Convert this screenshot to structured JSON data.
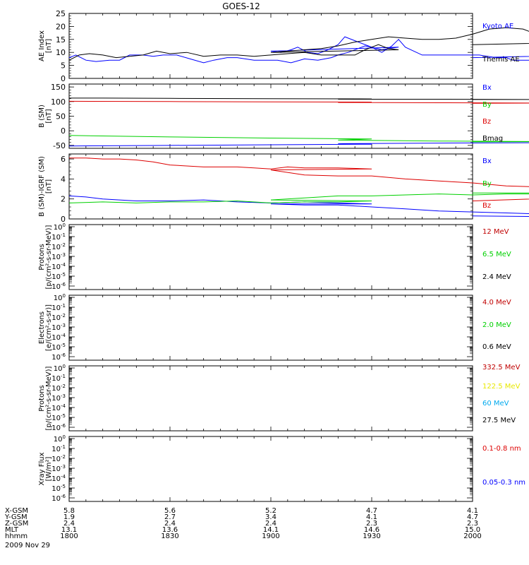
{
  "title": "GOES-12",
  "colors": {
    "black": "#000000",
    "blue": "#0000ff",
    "green": "#00d000",
    "red": "#dd0000",
    "darkred": "#c00000",
    "yellow": "#e8e800",
    "cyan": "#00aaee"
  },
  "chart_data": [
    {
      "type": "line",
      "id": "ae",
      "ylabel": [
        "AE Index",
        "[nT]"
      ],
      "ylim": [
        0,
        25
      ],
      "yticks": [
        "0",
        "5",
        "10",
        "15",
        "20",
        "25"
      ],
      "legend": [
        {
          "label": "Kyoto AE",
          "color": "#0000ff"
        },
        {
          "label": "Themis AE",
          "color": "#000000"
        }
      ],
      "series": [
        {
          "color": "#0000ff",
          "x": [
            1800,
            1802,
            1805,
            1808,
            1812,
            1815,
            1818,
            1822,
            1825,
            1828,
            1832,
            1836,
            1840,
            1843,
            1847,
            1850,
            1855,
            1858,
            1862,
            1866,
            1870,
            1874,
            1878,
            1880,
            1883,
            1886,
            1888,
            1890,
            1893,
            1895,
            1898,
            1900,
            1903,
            1906,
            1908,
            1911,
            1914,
            1917,
            1920,
            1922,
            1926,
            1930,
            1933,
            1936,
            1938,
            1940,
            1945,
            1950,
            1955,
            1958,
            1962,
            1967,
            1970,
            1972,
            1975,
            1978,
            1980,
            1985,
            1988,
            1992,
            1997,
            2000
          ],
          "y": [
            8,
            9,
            7,
            6.5,
            7,
            7,
            9,
            9,
            8.5,
            9,
            9,
            7.5,
            6,
            7,
            8,
            8,
            7,
            7,
            7,
            6,
            7.5,
            7,
            8,
            9,
            10,
            11.5,
            12.5,
            12,
            11,
            11.5,
            12,
            10.5,
            10,
            11,
            12,
            10,
            9.5,
            11,
            13,
            16,
            14,
            12,
            10,
            12.5,
            15,
            12,
            9,
            9,
            9,
            9,
            9,
            8,
            8,
            7,
            7,
            7,
            9,
            9,
            8.5,
            9,
            9,
            8
          ]
        },
        {
          "color": "#000000",
          "x": [
            1800,
            1803,
            1806,
            1810,
            1814,
            1818,
            1822,
            1826,
            1830,
            1835,
            1840,
            1845,
            1850,
            1855,
            1860,
            1865,
            1870,
            1875,
            1880,
            1885,
            1888,
            1892,
            1895,
            1898,
            1900,
            1905,
            1910,
            1915,
            1920,
            1925,
            1930,
            1935,
            1940,
            1945,
            1950,
            1955,
            1960,
            1965,
            1970,
            1975,
            1978,
            1982,
            1986,
            1990,
            1993,
            1996,
            2000
          ],
          "y": [
            7,
            9,
            9.5,
            9,
            8,
            8.5,
            9,
            10.5,
            9.5,
            10,
            8.5,
            9,
            9,
            8.5,
            9,
            9.5,
            10,
            9,
            9,
            9,
            11,
            13,
            11.5,
            11,
            10,
            10.5,
            11,
            11.5,
            12.5,
            14,
            15,
            16,
            15.5,
            15,
            15,
            15.5,
            17,
            19,
            19.5,
            19,
            17.5,
            16,
            16.5,
            17,
            16,
            14,
            13
          ]
        }
      ]
    },
    {
      "type": "line",
      "id": "bfield",
      "ylabel": [
        "B (SM)",
        "[nT]"
      ],
      "ylim": [
        -60,
        160
      ],
      "yticks": [
        "-50",
        "0",
        "50",
        "100",
        "150"
      ],
      "ytick_values": [
        -50,
        0,
        50,
        100,
        150
      ],
      "legend": [
        {
          "label": "Bx",
          "color": "#0000ff"
        },
        {
          "label": "By",
          "color": "#00d000"
        },
        {
          "label": "Bz",
          "color": "#dd0000"
        },
        {
          "label": "Bmag",
          "color": "#000000"
        }
      ],
      "series": [
        {
          "name": "Bx",
          "color": "#0000ff",
          "x": [
            1800,
            1830,
            1860,
            1890,
            1920,
            1950,
            1980,
            1995
          ],
          "y": [
            -52,
            -50,
            -48,
            -46,
            -44,
            -42,
            -41,
            -40
          ]
        },
        {
          "name": "By",
          "color": "#00d000",
          "x": [
            1800,
            1830,
            1860,
            1890,
            1920,
            1950,
            1980,
            2000
          ],
          "y": [
            -16,
            -21,
            -25,
            -28,
            -32,
            -35,
            -37,
            -38
          ]
        },
        {
          "name": "Bz",
          "color": "#dd0000",
          "x": [
            1800,
            1830,
            1860,
            1890,
            1920,
            1950,
            1980,
            2000
          ],
          "y": [
            101,
            100,
            99,
            98,
            97,
            96,
            95,
            94
          ]
        },
        {
          "name": "Bmag",
          "color": "#000000",
          "x": [
            1800,
            1810,
            1830,
            1860,
            1890,
            1920,
            1950,
            1980,
            2000
          ],
          "y": [
            112,
            112,
            111,
            110,
            109,
            108,
            108,
            107,
            107
          ]
        }
      ]
    },
    {
      "type": "line",
      "id": "bdiff",
      "ylabel": [
        "B (SM)-IGRF (SM)",
        "[nT]"
      ],
      "ylim": [
        0,
        6.5
      ],
      "yticks": [
        "0",
        "2",
        "4",
        "6"
      ],
      "ytick_values": [
        0,
        2,
        4,
        6
      ],
      "legend": [
        {
          "label": "Bx",
          "color": "#0000ff"
        },
        {
          "label": "By",
          "color": "#00d000"
        },
        {
          "label": "Bz",
          "color": "#dd0000"
        }
      ],
      "series": [
        {
          "name": "Bx",
          "color": "#0000ff",
          "x": [
            1800,
            1805,
            1810,
            1815,
            1820,
            1830,
            1840,
            1850,
            1860,
            1870,
            1880,
            1890,
            1900,
            1910,
            1920,
            1930,
            1940,
            1950,
            1960,
            1970,
            1980,
            1985,
            1990,
            1995,
            2000
          ],
          "y": [
            2.3,
            2.2,
            2.0,
            1.9,
            1.8,
            1.8,
            1.9,
            1.7,
            1.6,
            1.7,
            1.6,
            1.5,
            1.5,
            1.4,
            1.4,
            1.2,
            1.0,
            0.8,
            0.7,
            0.6,
            0.5,
            0.4,
            0.3,
            0.2,
            0.3
          ]
        },
        {
          "name": "By",
          "color": "#00d000",
          "x": [
            1800,
            1810,
            1820,
            1830,
            1840,
            1850,
            1860,
            1870,
            1880,
            1890,
            1900,
            1910,
            1920,
            1930,
            1940,
            1950,
            1960,
            1970,
            1980,
            1990,
            2000
          ],
          "y": [
            1.6,
            1.7,
            1.6,
            1.7,
            1.7,
            1.8,
            1.6,
            1.7,
            1.7,
            1.8,
            1.9,
            2.1,
            2.3,
            2.3,
            2.4,
            2.5,
            2.4,
            2.5,
            2.5,
            2.6,
            2.6
          ]
        },
        {
          "name": "Bz",
          "color": "#dd0000",
          "x": [
            1800,
            1805,
            1810,
            1815,
            1820,
            1825,
            1830,
            1840,
            1850,
            1855,
            1860,
            1865,
            1870,
            1880,
            1890,
            1900,
            1910,
            1920,
            1930,
            1940,
            1950,
            1960,
            1970,
            1980,
            1985,
            1990,
            1995,
            2000
          ],
          "y": [
            6.1,
            6.1,
            6.0,
            6.0,
            5.9,
            5.7,
            5.4,
            5.2,
            5.2,
            5.1,
            5.0,
            5.2,
            5.1,
            5.1,
            5.0,
            4.9,
            4.4,
            4.3,
            4.3,
            4.0,
            3.8,
            3.6,
            3.3,
            3.2,
            3.0,
            2.8,
            2.2,
            1.8
          ]
        }
      ]
    },
    {
      "type": "line",
      "id": "protons1",
      "ylabel": [
        "Protons",
        "[p/(cm²-s-sr-MeV)]"
      ],
      "log": true,
      "yticks_exp": [
        0,
        -1,
        -2,
        -3,
        -4,
        -5,
        -6
      ],
      "legend": [
        {
          "label": "12 MeV",
          "color": "#c00000"
        },
        {
          "label": "6.5 MeV",
          "color": "#00d000"
        },
        {
          "label": "2.4 MeV",
          "color": "#000000"
        }
      ],
      "series": []
    },
    {
      "type": "line",
      "id": "electrons",
      "ylabel": [
        "Electrons",
        "[e/(cm²-s-sr)]"
      ],
      "log": true,
      "yticks_exp": [
        0,
        -1,
        -2,
        -3,
        -4,
        -5,
        -6
      ],
      "legend": [
        {
          "label": "4.0 MeV",
          "color": "#c00000"
        },
        {
          "label": "2.0 MeV",
          "color": "#00d000"
        },
        {
          "label": "0.6 MeV",
          "color": "#000000"
        }
      ],
      "series": []
    },
    {
      "type": "line",
      "id": "protons2",
      "ylabel": [
        "Protons",
        "[p/(cm²-s-sr-MeV)]"
      ],
      "log": true,
      "yticks_exp": [
        0,
        -1,
        -2,
        -3,
        -4,
        -5,
        -6
      ],
      "legend": [
        {
          "label": "332.5 MeV",
          "color": "#c00000"
        },
        {
          "label": "122.5 MeV",
          "color": "#e8e800"
        },
        {
          "label": "60 MeV",
          "color": "#00aaee"
        },
        {
          "label": "27.5 MeV",
          "color": "#000000"
        }
      ],
      "series": []
    },
    {
      "type": "line",
      "id": "xray",
      "ylabel": [
        "Xray Flux",
        "[W/m²]"
      ],
      "log": true,
      "yticks_exp": [
        0,
        -1,
        -2,
        -3,
        -4,
        -5,
        -6
      ],
      "legend": [
        {
          "label": "0.1-0.8 nm",
          "color": "#dd0000"
        },
        {
          "label": "0.05-0.3 nm",
          "color": "#0000ff"
        }
      ],
      "series": []
    }
  ],
  "x_axis": {
    "range": [
      1800,
      2000
    ],
    "ticks": [
      1800,
      1830,
      1900,
      1930,
      2000
    ],
    "rows": [
      {
        "label": "X-GSM",
        "values": [
          "5.8",
          "5.6",
          "5.2",
          "4.7",
          "4.1"
        ]
      },
      {
        "label": "Y-GSM",
        "values": [
          "1.9",
          "2.7",
          "3.4",
          "4.1",
          "4.7"
        ]
      },
      {
        "label": "Z-GSM",
        "values": [
          "2.4",
          "2.4",
          "2.4",
          "2.3",
          "2.3"
        ]
      },
      {
        "label": "MLT",
        "values": [
          "13.1",
          "13.6",
          "14.1",
          "14.6",
          "15.0"
        ]
      },
      {
        "label": "hhmm",
        "values": [
          "1800",
          "1830",
          "1900",
          "1930",
          "2000"
        ]
      }
    ],
    "date": "2009 Nov 29"
  }
}
